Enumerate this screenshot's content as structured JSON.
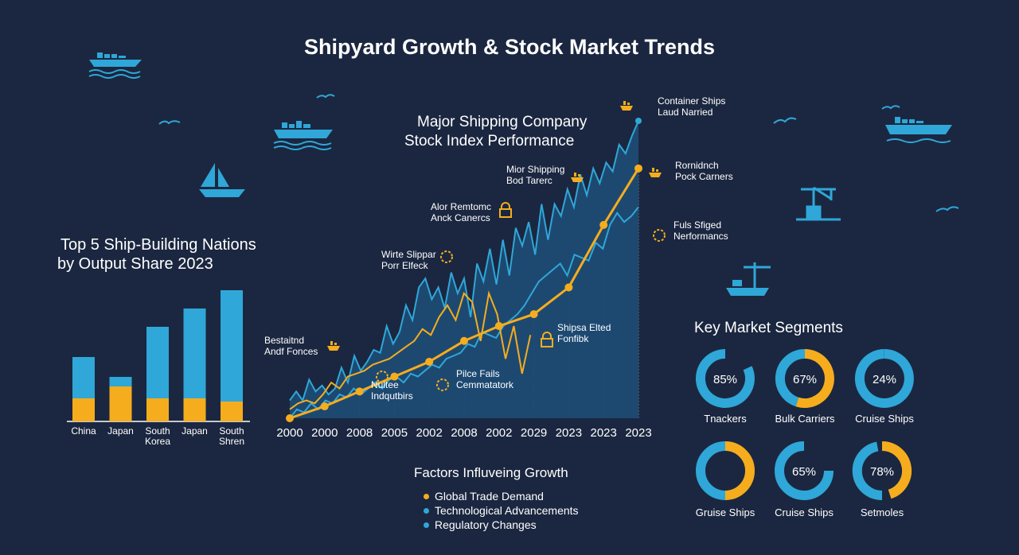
{
  "title": "Shipyard Growth & Stock Market Trends",
  "colors": {
    "background": "#1b2740",
    "blue": "#2fa7d8",
    "orange": "#f5ad1e",
    "area": "#1e4b74",
    "line": "#2fa7d8",
    "text": "#ffffff"
  },
  "chart_data": [
    {
      "type": "bar",
      "title": "Top 5 Ship-Building Nations by Output Share 2023",
      "title_lines": [
        "Top 5 Ship-Building Nations",
        "by Output Share 2023"
      ],
      "categories": [
        "China",
        "Japan",
        "South Korea",
        "Japan",
        "South Shren"
      ],
      "category_lines": [
        [
          "China"
        ],
        [
          "Japan"
        ],
        [
          "South",
          "Korea"
        ],
        [
          "Japan"
        ],
        [
          "South",
          "Shren"
        ]
      ],
      "series": [
        {
          "values": [
            29,
            44,
            29,
            29,
            25
          ]
        },
        {
          "values": [
            52,
            12,
            90,
            113,
            140
          ]
        }
      ],
      "ylim": [
        0,
        170
      ]
    },
    {
      "type": "area",
      "title": "Major Shipping Company Stock Index Performance",
      "title_lines": [
        "Major Shipping Company",
        "Stock Index Performance"
      ],
      "x_labels": [
        "2000",
        "2000",
        "2008",
        "2005",
        "2002",
        "2008",
        "2002",
        "2029",
        "2023",
        "2023",
        "2023"
      ],
      "ylim": [
        0,
        100
      ],
      "series": [
        {
          "kind": "area",
          "values": [
            6,
            9,
            6,
            13,
            9,
            11,
            8,
            10,
            17,
            12,
            21,
            16,
            19,
            23,
            22,
            31,
            25,
            29,
            38,
            33,
            44,
            47,
            40,
            44,
            37,
            49,
            42,
            47,
            34,
            52,
            46,
            57,
            45,
            60,
            48,
            64,
            58,
            66,
            55,
            72,
            60,
            72,
            68,
            77,
            71,
            82,
            75,
            84,
            79,
            86,
            83,
            92,
            89,
            95,
            100
          ]
        },
        {
          "kind": "line",
          "values": [
            0,
            3,
            2,
            5,
            3,
            6,
            5,
            8,
            7,
            10,
            8,
            10,
            12,
            10,
            13,
            14,
            12,
            15,
            14,
            16,
            18,
            17,
            20,
            21,
            22,
            25,
            24,
            29,
            28,
            27,
            31,
            33,
            35,
            38,
            42,
            46,
            48,
            50,
            52,
            48,
            55,
            54,
            53,
            59,
            57,
            65,
            69,
            66,
            68,
            71
          ]
        },
        {
          "kind": "partial-line",
          "values": [
            3,
            5,
            6,
            5,
            8,
            12,
            10,
            14,
            15,
            16,
            18,
            19,
            20,
            22,
            24,
            26,
            30,
            28,
            34,
            38,
            33,
            42,
            39,
            26,
            42,
            35,
            20,
            31,
            15,
            28
          ]
        },
        {
          "kind": "markers",
          "values": [
            0,
            4,
            9,
            14,
            19,
            26,
            31,
            35,
            44,
            65,
            84
          ]
        }
      ],
      "annotations": [
        {
          "text": [
            "Container Ships",
            "Laud Narried"
          ],
          "icon": "ship-icon"
        },
        {
          "text": [
            "Rornidnch",
            "Pock Carners"
          ],
          "icon": "ship-icon"
        },
        {
          "text": [
            "Mior Shipping",
            "Bod Tarerc"
          ],
          "icon": "ship-icon"
        },
        {
          "text": [
            "Fuls Sfiged",
            "Nerformancs"
          ],
          "icon": "gear-icon"
        },
        {
          "text": [
            "Alor Remtomc",
            "Anck Canercs"
          ],
          "icon": "lock-icon"
        },
        {
          "text": [
            "Wirte Slippar",
            "Porr Elfeck"
          ],
          "icon": "gear-icon"
        },
        {
          "text": [
            "Bestaitnd",
            "Andf Fonces"
          ],
          "icon": "ship-icon"
        },
        {
          "text": [
            "Shipsa Elted",
            "Fonfibk"
          ],
          "icon": "lock-icon"
        },
        {
          "text": [
            "Pilce Fails",
            "Cemmatatork"
          ],
          "icon": "gear-icon"
        },
        {
          "text": [
            "Nultee",
            "Indqutbirs"
          ],
          "icon": "gear-icon"
        }
      ]
    },
    {
      "type": "pie",
      "title": "Key Market Segments",
      "items": [
        {
          "label": "Tnackers",
          "value": 85,
          "value_label": "85%",
          "orange": 0,
          "blue_start": 0.18,
          "blue_end": 1.0
        },
        {
          "label": "Bulk Carriers",
          "value": 67,
          "value_label": "67%",
          "orange": 0.55,
          "blue_start": 0.55,
          "blue_end": 1.0
        },
        {
          "label": "Cruise Ships",
          "value": 24,
          "value_label": "24%",
          "orange": 0,
          "blue_start": 0,
          "blue_end": 1.0
        },
        {
          "label": "Gruise Ships",
          "value": null,
          "value_label": "",
          "orange": 0.5,
          "blue_start": 0.5,
          "blue_end": 1.0
        },
        {
          "label": "Cruise Ships",
          "value": 65,
          "value_label": "65%",
          "orange": 0,
          "blue_start": 0.25,
          "blue_end": 1.0
        },
        {
          "label": "Setmoles",
          "value": 78,
          "value_label": "78%",
          "orange": 0.45,
          "blue_start": 0.5,
          "blue_end": 0.97
        }
      ]
    }
  ],
  "factors": {
    "title": "Factors Influveing Growth",
    "items": [
      {
        "label": "Global Trade Demand",
        "color": "#f5ad1e"
      },
      {
        "label": "Technological Advancements",
        "color": "#2fa7d8"
      },
      {
        "label": "Regulatory Changes",
        "color": "#2fa7d8"
      }
    ]
  },
  "decor_icons": [
    "cargo-ship-icon",
    "cargo-ship-icon",
    "sailboat-icon",
    "cargo-ship-icon",
    "crane-icon",
    "harbor-icon",
    "bird-icon"
  ]
}
